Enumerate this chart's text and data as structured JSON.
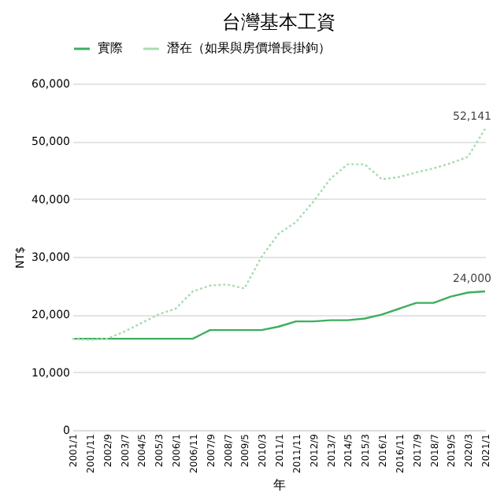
{
  "chart_data": {
    "type": "line",
    "title": "台灣基本工資",
    "xlabel": "年",
    "ylabel": "NT$",
    "categories": [
      "2001/1",
      "2001/11",
      "2002/9",
      "2003/7",
      "2004/5",
      "2005/3",
      "2006/1",
      "2006/11",
      "2007/9",
      "2008/7",
      "2009/5",
      "2010/3",
      "2011/1",
      "2011/11",
      "2012/9",
      "2013/7",
      "2014/5",
      "2015/3",
      "2016/1",
      "2016/11",
      "2017/9",
      "2018/7",
      "2019/5",
      "2020/3",
      "2021/1"
    ],
    "series": [
      {
        "name": "實際",
        "color": "#3dae5e",
        "line_style": "solid",
        "values": [
          15800,
          15800,
          15800,
          15800,
          15800,
          15800,
          15800,
          15800,
          17300,
          17300,
          17300,
          17300,
          17900,
          18800,
          18800,
          19000,
          19000,
          19300,
          20000,
          21000,
          22000,
          22000,
          23100,
          23800,
          24000
        ]
      },
      {
        "name": "潛在（如果與房價增長掛鉤）",
        "color": "#a8dcb0",
        "line_style": "dotted",
        "values": [
          15800,
          15600,
          15800,
          17000,
          18500,
          20000,
          21000,
          24000,
          25000,
          25200,
          24500,
          30000,
          34000,
          36000,
          39500,
          43500,
          46000,
          46000,
          43400,
          43800,
          44600,
          45300,
          46200,
          47300,
          52141
        ]
      }
    ],
    "ylim": [
      0,
      60000
    ],
    "yticks": [
      {
        "value": 0,
        "label": "0"
      },
      {
        "value": 10000,
        "label": "10,000"
      },
      {
        "value": 20000,
        "label": "20,000"
      },
      {
        "value": 30000,
        "label": "30,000"
      },
      {
        "value": 40000,
        "label": "40,000"
      },
      {
        "value": 50000,
        "label": "50,000"
      },
      {
        "value": 60000,
        "label": "60,000"
      }
    ],
    "grid": "y",
    "legend": "top",
    "annotations": [
      {
        "text": "52,141",
        "x": "2021/1",
        "y": 52141
      },
      {
        "text": "24,000",
        "x": "2021/1",
        "y": 24000
      }
    ]
  }
}
